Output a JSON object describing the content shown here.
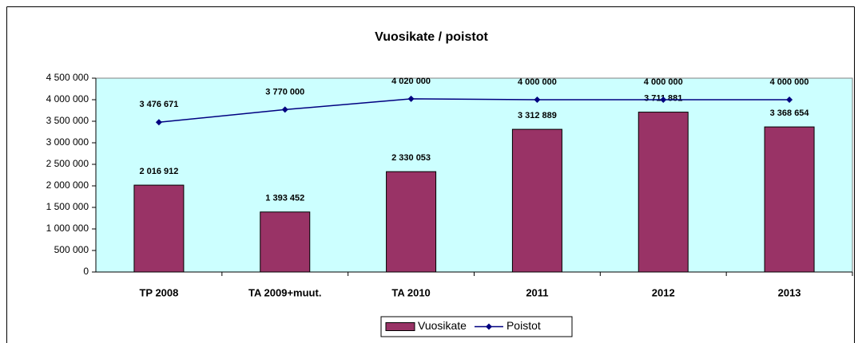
{
  "chart_data": {
    "type": "combo",
    "title": "Vuosikate / poistot",
    "categories": [
      "TP  2008",
      "TA 2009+muut.",
      "TA 2010",
      "2011",
      "2012",
      "2013"
    ],
    "series": [
      {
        "name": "Vuosikate",
        "type": "bar",
        "color": "#993366",
        "values": [
          2016912,
          1393452,
          2330053,
          3312889,
          3711881,
          3368654
        ],
        "value_labels": [
          "2 016 912",
          "1 393 452",
          "2 330 053",
          "3 312 889",
          "3 711 881",
          "3 368 654"
        ]
      },
      {
        "name": "Poistot",
        "type": "line",
        "color": "#000080",
        "values": [
          3476671,
          3770000,
          4020000,
          4000000,
          4000000,
          4000000
        ],
        "value_labels": [
          "3 476 671",
          "3 770 000",
          "4 020 000",
          "4 000 000",
          "4 000 000",
          "4 000 000"
        ]
      }
    ],
    "ylim": [
      0,
      4500000
    ],
    "yticks": [
      0,
      {
        "value": 500000,
        "label": "500 000"
      },
      {
        "value": 1000000,
        "label": "1 000 000"
      },
      {
        "value": 1500000,
        "label": "1 500 000"
      },
      {
        "value": 2000000,
        "label": "2 000 000"
      },
      {
        "value": 2500000,
        "label": "2 500 000"
      },
      {
        "value": 3000000,
        "label": "3 000 000"
      },
      {
        "value": 3500000,
        "label": "3 500 000"
      },
      {
        "value": 4000000,
        "label": "4 000 000"
      },
      {
        "value": 4500000,
        "label": "4 500 000"
      }
    ],
    "plot_background": "#ccffff",
    "legend": "bottom"
  }
}
